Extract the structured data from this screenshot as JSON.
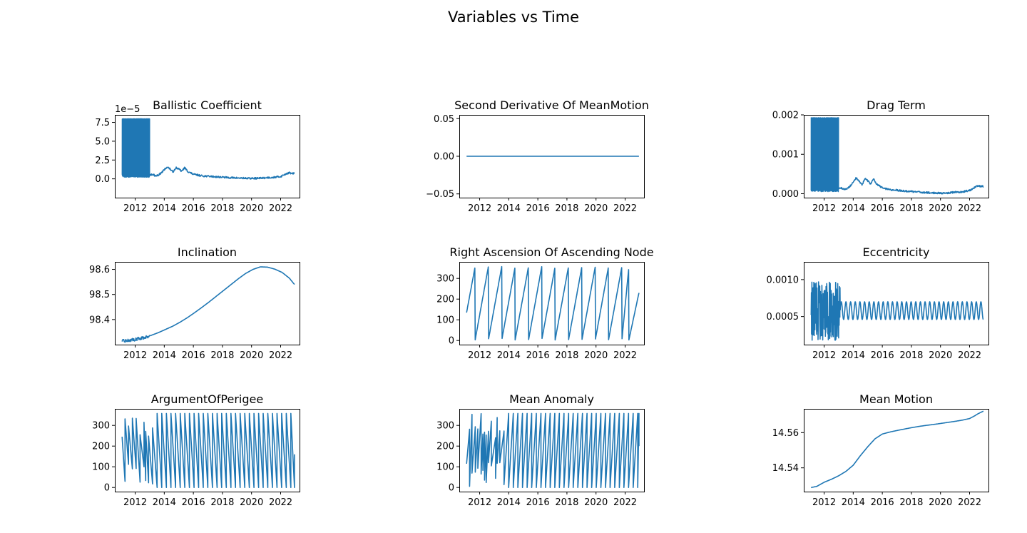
{
  "figure": {
    "title": "Variables vs Time"
  },
  "colors": {
    "series": "#1f77b4",
    "frame": "#000000"
  },
  "chart_data": [
    {
      "type": "line",
      "title": "Ballistic Coefficient",
      "xlabel": "",
      "ylabel": "",
      "xlim": [
        2010.6,
        2023.3
      ],
      "ylim": [
        -2.5e-05,
        8.5e-05
      ],
      "xticks": [
        2012,
        2014,
        2016,
        2018,
        2020,
        2022
      ],
      "xtick_labels": [
        "2012",
        "2014",
        "2016",
        "2018",
        "2020",
        "2022"
      ],
      "yticks": [
        0.0,
        2.5e-05,
        5e-05,
        7.5e-05
      ],
      "ytick_labels": [
        "0.0",
        "2.5",
        "5.0",
        "7.5"
      ],
      "offset_label": "1e−5",
      "series": [
        {
          "x": [
            2011.1,
            2012.0,
            2012.9,
            2013.2,
            2013.4,
            2013.6,
            2013.8,
            2014.0,
            2014.2,
            2014.4,
            2014.6,
            2014.8,
            2015.0,
            2015.2,
            2015.4,
            2015.6,
            2015.8,
            2016.0,
            2016.3,
            2016.6,
            2017.0,
            2017.5,
            2018.0,
            2018.5,
            2019.0,
            2019.5,
            2020.0,
            2020.5,
            2021.0,
            2021.5,
            2022.0,
            2022.2,
            2022.4,
            2022.6,
            2022.8,
            2022.95
          ],
          "y": [
            5e-06,
            4e-06,
            5e-06,
            6e-06,
            4e-06,
            5e-06,
            8e-06,
            1.2e-05,
            1.6e-05,
            1.3e-05,
            9e-06,
            1.5e-05,
            1.3e-05,
            1e-05,
            1.5e-05,
            1e-05,
            8e-06,
            6e-06,
            5e-06,
            4e-06,
            3.5e-06,
            2.8e-06,
            2.2e-06,
            1.6e-06,
            1.2e-06,
            8e-07,
            6e-07,
            8e-07,
            1.5e-06,
            2e-06,
            3e-06,
            5e-06,
            7e-06,
            8e-06,
            7e-06,
            7.5e-06
          ]
        }
      ],
      "dense_band": {
        "x": [
          2011.1,
          2013.0
        ],
        "y": [
          2e-06,
          8e-05
        ]
      }
    },
    {
      "type": "line",
      "title": "Second Derivative Of MeanMotion",
      "xlabel": "",
      "ylabel": "",
      "xlim": [
        2010.6,
        2023.3
      ],
      "ylim": [
        -0.055,
        0.055
      ],
      "xticks": [
        2012,
        2014,
        2016,
        2018,
        2020,
        2022
      ],
      "xtick_labels": [
        "2012",
        "2014",
        "2016",
        "2018",
        "2020",
        "2022"
      ],
      "yticks": [
        -0.05,
        0.0,
        0.05
      ],
      "ytick_labels": [
        "−0.05",
        "0.00",
        "0.05"
      ],
      "series": [
        {
          "x": [
            2011.1,
            2022.95
          ],
          "y": [
            0.0,
            0.0
          ]
        }
      ]
    },
    {
      "type": "line",
      "title": "Drag Term",
      "xlabel": "",
      "ylabel": "",
      "xlim": [
        2010.6,
        2023.3
      ],
      "ylim": [
        -0.0001,
        0.002
      ],
      "xticks": [
        2012,
        2014,
        2016,
        2018,
        2020,
        2022
      ],
      "xtick_labels": [
        "2012",
        "2014",
        "2016",
        "2018",
        "2020",
        "2022"
      ],
      "yticks": [
        0.0,
        0.001,
        0.002
      ],
      "ytick_labels": [
        "0.000",
        "0.001",
        "0.002"
      ],
      "series": [
        {
          "x": [
            2011.1,
            2012.0,
            2012.9,
            2013.2,
            2013.4,
            2013.6,
            2013.8,
            2014.0,
            2014.2,
            2014.4,
            2014.6,
            2014.8,
            2015.0,
            2015.2,
            2015.4,
            2015.6,
            2015.8,
            2016.0,
            2016.3,
            2016.6,
            2017.0,
            2017.5,
            2018.0,
            2018.5,
            2019.0,
            2019.5,
            2020.0,
            2020.5,
            2021.0,
            2021.5,
            2022.0,
            2022.2,
            2022.4,
            2022.6,
            2022.8,
            2022.95
          ],
          "y": [
            0.00012,
            0.0001,
            0.00012,
            0.00015,
            0.0001,
            0.00013,
            0.0002,
            0.0003,
            0.0004,
            0.00032,
            0.00022,
            0.00038,
            0.00033,
            0.00025,
            0.00038,
            0.00025,
            0.0002,
            0.00015,
            0.00012,
            0.0001,
            9e-05,
            7e-05,
            5.5e-05,
            4e-05,
            3e-05,
            2e-05,
            1.5e-05,
            2e-05,
            4e-05,
            5e-05,
            8e-05,
            0.00012,
            0.00017,
            0.0002,
            0.00018,
            0.00019
          ]
        }
      ],
      "dense_band": {
        "x": [
          2011.1,
          2013.0
        ],
        "y": [
          5e-05,
          0.00193
        ]
      }
    },
    {
      "type": "line",
      "title": "Inclination",
      "xlabel": "",
      "ylabel": "",
      "xlim": [
        2010.6,
        2023.3
      ],
      "ylim": [
        98.3,
        98.63
      ],
      "xticks": [
        2012,
        2014,
        2016,
        2018,
        2020,
        2022
      ],
      "xtick_labels": [
        "2012",
        "2014",
        "2016",
        "2018",
        "2020",
        "2022"
      ],
      "yticks": [
        98.4,
        98.5,
        98.6
      ],
      "ytick_labels": [
        "98.4",
        "98.5",
        "98.6"
      ],
      "series": [
        {
          "x": [
            2011.1,
            2011.6,
            2012.1,
            2012.6,
            2013.1,
            2013.6,
            2014.1,
            2014.6,
            2015.1,
            2015.6,
            2016.1,
            2016.6,
            2017.1,
            2017.6,
            2018.1,
            2018.6,
            2019.1,
            2019.6,
            2020.1,
            2020.6,
            2021.1,
            2021.6,
            2022.1,
            2022.6,
            2022.95
          ],
          "y": [
            98.314,
            98.317,
            98.322,
            98.328,
            98.337,
            98.348,
            98.361,
            98.374,
            98.39,
            98.408,
            98.428,
            98.449,
            98.471,
            98.494,
            98.517,
            98.54,
            98.563,
            98.584,
            98.6,
            98.61,
            98.609,
            98.601,
            98.588,
            98.565,
            98.54
          ]
        }
      ],
      "noise": {
        "x": [
          2011.1,
          2013.0
        ],
        "amplitude": 0.006
      }
    },
    {
      "type": "line",
      "title": "Right Ascension Of Ascending Node",
      "xlabel": "",
      "ylabel": "",
      "xlim": [
        2010.6,
        2023.3
      ],
      "ylim": [
        -20,
        380
      ],
      "xticks": [
        2012,
        2014,
        2016,
        2018,
        2020,
        2022
      ],
      "xtick_labels": [
        "2012",
        "2014",
        "2016",
        "2018",
        "2020",
        "2022"
      ],
      "yticks": [
        0,
        100,
        200,
        300
      ],
      "ytick_labels": [
        "0",
        "100",
        "200",
        "300"
      ],
      "series": [
        {
          "x": [
            2011.1,
            2011.69,
            2011.69,
            2012.6,
            2012.6,
            2013.52,
            2013.52,
            2014.44,
            2014.44,
            2015.36,
            2015.36,
            2016.27,
            2016.27,
            2017.19,
            2017.19,
            2018.11,
            2018.11,
            2019.03,
            2019.03,
            2019.95,
            2019.95,
            2020.86,
            2020.86,
            2021.78,
            2021.78,
            2022.26,
            2022.26,
            2022.95
          ],
          "y": [
            135,
            358,
            2,
            358,
            2,
            358,
            2,
            358,
            2,
            358,
            2,
            358,
            2,
            358,
            2,
            358,
            2,
            358,
            2,
            358,
            2,
            358,
            2,
            358,
            2,
            358,
            2,
            230
          ]
        }
      ]
    },
    {
      "type": "line",
      "title": "Eccentricity",
      "xlabel": "",
      "ylabel": "",
      "xlim": [
        2010.6,
        2023.3
      ],
      "ylim": [
        0.00012,
        0.00124
      ],
      "xticks": [
        2012,
        2014,
        2016,
        2018,
        2020,
        2022
      ],
      "xtick_labels": [
        "2012",
        "2014",
        "2016",
        "2018",
        "2020",
        "2022"
      ],
      "yticks": [
        0.0005,
        0.001
      ],
      "ytick_labels": [
        "0.0005",
        "0.0010"
      ],
      "series": [
        {
          "x": [
            2011.1,
            2022.95
          ],
          "y": [
            0.00058,
            0.00058
          ]
        }
      ],
      "oscillation": {
        "center": 0.00058,
        "amplitude": 0.00012,
        "period_years": 0.32,
        "noisy_until": 2013.1,
        "noisy_amplitude": 0.0004
      }
    },
    {
      "type": "line",
      "title": "ArgumentOfPerigee",
      "xlabel": "",
      "ylabel": "",
      "xlim": [
        2010.6,
        2023.3
      ],
      "ylim": [
        -20,
        380
      ],
      "xticks": [
        2012,
        2014,
        2016,
        2018,
        2020,
        2022
      ],
      "xtick_labels": [
        "2012",
        "2014",
        "2016",
        "2018",
        "2020",
        "2022"
      ],
      "yticks": [
        0,
        100,
        200,
        300
      ],
      "ytick_labels": [
        "0",
        "100",
        "200",
        "300"
      ],
      "series": [
        {
          "x": [
            2011.1,
            2022.95
          ],
          "y": [
            245,
            160
          ]
        }
      ],
      "sawtooth": {
        "min": 0,
        "max": 358,
        "period_years": 0.317,
        "noisy_until": 2013.1
      }
    },
    {
      "type": "line",
      "title": "Mean Anomaly",
      "xlabel": "",
      "ylabel": "",
      "xlim": [
        2010.6,
        2023.3
      ],
      "ylim": [
        -20,
        380
      ],
      "xticks": [
        2012,
        2014,
        2016,
        2018,
        2020,
        2022
      ],
      "xtick_labels": [
        "2012",
        "2014",
        "2016",
        "2018",
        "2020",
        "2022"
      ],
      "yticks": [
        0,
        100,
        200,
        300
      ],
      "ytick_labels": [
        "0",
        "100",
        "200",
        "300"
      ],
      "series": [
        {
          "x": [
            2011.1,
            2022.95
          ],
          "y": [
            115,
            200
          ]
        }
      ],
      "sawtooth": {
        "min": 0,
        "max": 358,
        "period_years": 0.317,
        "noisy_until": 2013.6,
        "rising": true
      }
    },
    {
      "type": "line",
      "title": "Mean Motion",
      "xlabel": "",
      "ylabel": "",
      "xlim": [
        2010.6,
        2023.3
      ],
      "ylim": [
        14.5265,
        14.5735
      ],
      "xticks": [
        2012,
        2014,
        2016,
        2018,
        2020,
        2022
      ],
      "xtick_labels": [
        "2012",
        "2014",
        "2016",
        "2018",
        "2020",
        "2022"
      ],
      "yticks": [
        14.54,
        14.56
      ],
      "ytick_labels": [
        "14.54",
        "14.56"
      ],
      "series": [
        {
          "x": [
            2011.1,
            2011.5,
            2012.0,
            2012.5,
            2013.0,
            2013.5,
            2014.0,
            2014.5,
            2015.0,
            2015.5,
            2016.0,
            2016.5,
            2017.0,
            2017.5,
            2018.0,
            2018.5,
            2019.0,
            2019.5,
            2020.0,
            2020.5,
            2021.0,
            2021.5,
            2022.0,
            2022.3,
            2022.6,
            2022.95
          ],
          "y": [
            14.5288,
            14.5295,
            14.5318,
            14.5335,
            14.5355,
            14.538,
            14.5415,
            14.547,
            14.552,
            14.5565,
            14.5592,
            14.5603,
            14.5612,
            14.562,
            14.5628,
            14.5635,
            14.5641,
            14.5646,
            14.5652,
            14.5658,
            14.5664,
            14.5671,
            14.568,
            14.5693,
            14.5708,
            14.5722
          ]
        }
      ]
    }
  ]
}
